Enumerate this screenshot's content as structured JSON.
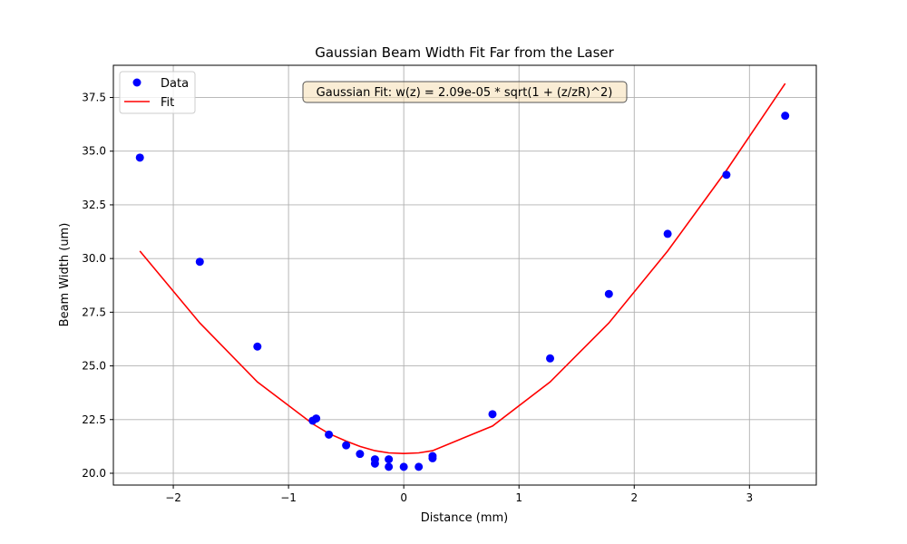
{
  "chart_data": {
    "type": "scatter",
    "title": "Gaussian Beam Width Fit Far from the Laser",
    "xlabel": "Distance (mm)",
    "ylabel": "Beam Width (um)",
    "xlim": [
      -2.52,
      3.58
    ],
    "ylim": [
      19.45,
      39.0
    ],
    "xticks": [
      -2,
      -1,
      0,
      1,
      2,
      3
    ],
    "xtick_labels": [
      "−2",
      "−1",
      "0",
      "1",
      "2",
      "3"
    ],
    "yticks": [
      20.0,
      22.5,
      25.0,
      27.5,
      30.0,
      32.5,
      35.0,
      37.5
    ],
    "ytick_labels": [
      "20.0",
      "22.5",
      "25.0",
      "27.5",
      "30.0",
      "32.5",
      "35.0",
      "37.5"
    ],
    "grid": true,
    "legend_position": "top-left",
    "annotation": "Gaussian Fit: w(z) = 2.09e-05 * sqrt(1 + (z/zR)^2)",
    "series": [
      {
        "name": "Data",
        "kind": "scatter",
        "color": "#0000ff",
        "x": [
          -2.29,
          -1.77,
          -1.27,
          -0.79,
          -0.76,
          -0.65,
          -0.5,
          -0.38,
          -0.25,
          -0.25,
          -0.13,
          -0.13,
          0.0,
          0.13,
          0.25,
          0.25,
          0.77,
          1.27,
          1.78,
          2.29,
          2.8,
          3.31
        ],
        "y": [
          34.7,
          29.85,
          25.9,
          22.45,
          22.55,
          21.8,
          21.3,
          20.9,
          20.65,
          20.45,
          20.65,
          20.3,
          20.3,
          20.3,
          20.7,
          20.8,
          22.75,
          25.35,
          28.35,
          31.15,
          33.9,
          36.65
        ]
      },
      {
        "name": "Fit",
        "kind": "line",
        "color": "#ff0000",
        "x": [
          -2.29,
          -1.77,
          -1.27,
          -0.79,
          -0.65,
          -0.5,
          -0.38,
          -0.25,
          -0.13,
          0.0,
          0.13,
          0.25,
          0.77,
          1.27,
          1.78,
          2.29,
          2.8,
          3.31
        ],
        "y": [
          30.35,
          27.0,
          24.25,
          22.3,
          21.85,
          21.5,
          21.25,
          21.05,
          20.95,
          20.92,
          20.95,
          21.05,
          22.2,
          24.25,
          27.0,
          30.35,
          34.1,
          38.15
        ]
      }
    ]
  }
}
